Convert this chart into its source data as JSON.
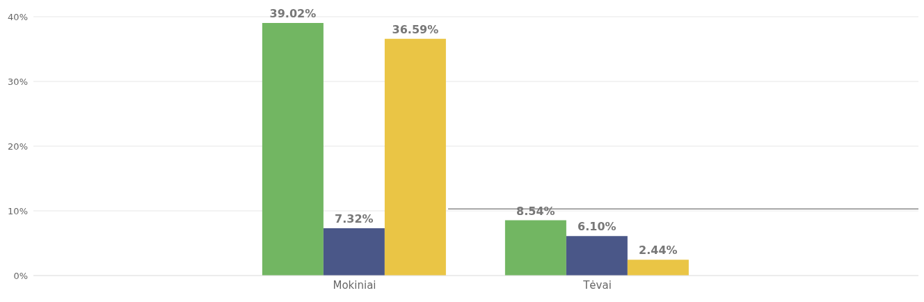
{
  "chart_data": {
    "type": "bar",
    "categories": [
      "Mokiniai",
      "Tėvai"
    ],
    "series": [
      {
        "color": "#72b662",
        "values": [
          39.02,
          8.54
        ],
        "value_labels": [
          "39.02%",
          "8.54%"
        ]
      },
      {
        "color": "#4a5788",
        "values": [
          7.32,
          6.1
        ],
        "value_labels": [
          "7.32%",
          "6.10%"
        ]
      },
      {
        "color": "#eac545",
        "values": [
          36.59,
          2.44
        ],
        "value_labels": [
          "36.59%",
          "2.44%"
        ]
      }
    ],
    "ylim": [
      0,
      40
    ],
    "yticks": [
      {
        "value": 0,
        "label": "0%"
      },
      {
        "value": 10,
        "label": "10%"
      },
      {
        "value": 20,
        "label": "20%"
      },
      {
        "value": 30,
        "label": "30%"
      },
      {
        "value": 40,
        "label": "40%"
      }
    ],
    "grid": "y",
    "legend": false,
    "ref_lines": [
      {
        "axis": "y",
        "value": 10.3,
        "color": "#8c8c8c"
      }
    ]
  }
}
